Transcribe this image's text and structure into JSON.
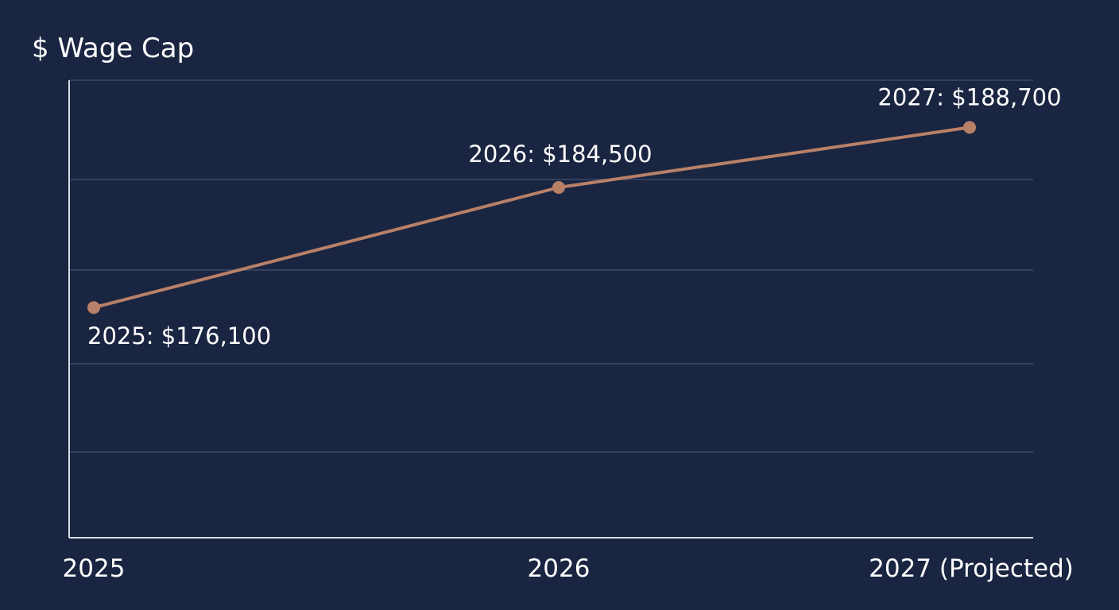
{
  "chart_data": {
    "type": "line",
    "title": "",
    "xlabel": "",
    "ylabel": "$ Wage Cap",
    "categories": [
      "2025",
      "2026",
      "2027 (Projected)"
    ],
    "values": [
      176100,
      184500,
      188700
    ],
    "data_labels": [
      "2025: $176,100",
      "2026: $184,500",
      "2027: $188,700"
    ],
    "ylim": [
      160000,
      192000
    ],
    "grid": true,
    "y_tick_labels_shown": false,
    "legend": "none"
  },
  "colors": {
    "background": "#1a2541",
    "line": "#b98068",
    "grid": "#3d4a69",
    "axis": "#d8dce6",
    "text": "#ffffff"
  }
}
